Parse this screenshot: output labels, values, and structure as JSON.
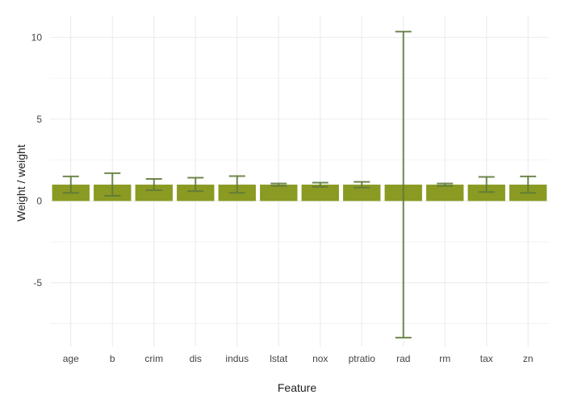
{
  "chart_data": {
    "type": "bar",
    "title": "",
    "xlabel": "Feature",
    "ylabel": "Weight / weight",
    "categories": [
      "age",
      "b",
      "crim",
      "dis",
      "indus",
      "lstat",
      "nox",
      "ptratio",
      "rad",
      "rm",
      "tax",
      "zn"
    ],
    "values": [
      1,
      1,
      1,
      1,
      1,
      1,
      1,
      1,
      1,
      1,
      1,
      1
    ],
    "error_low": [
      0.5,
      0.32,
      0.66,
      0.6,
      0.5,
      0.92,
      0.87,
      0.82,
      -8.35,
      0.92,
      0.55,
      0.5
    ],
    "error_high": [
      1.5,
      1.7,
      1.35,
      1.42,
      1.52,
      1.07,
      1.12,
      1.17,
      10.35,
      1.07,
      1.47,
      1.5
    ],
    "ylim": [
      -8.9,
      11.3
    ],
    "yticks": [
      -5,
      0,
      5,
      10
    ],
    "grid": true,
    "colors": {
      "bar": "#8a9a22",
      "error_bar": "#5f7a3a",
      "grid": "#ebebeb"
    }
  }
}
